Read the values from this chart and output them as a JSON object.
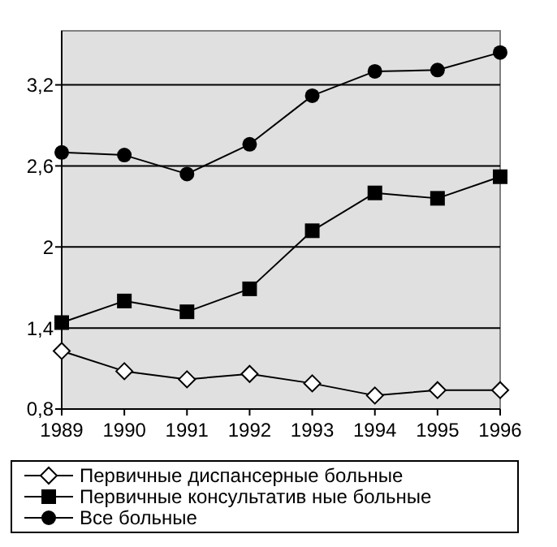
{
  "chart_data": {
    "type": "line",
    "categories": [
      "1989",
      "1990",
      "1991",
      "1992",
      "1993",
      "1994",
      "1995",
      "1996"
    ],
    "series": [
      {
        "name": "Первичные  диспансерные больные",
        "color": "#000000",
        "marker": "diamond",
        "values": [
          1.23,
          1.08,
          1.02,
          1.06,
          0.99,
          0.9,
          0.94,
          0.94
        ]
      },
      {
        "name": "Первичные  консультатив ные больные",
        "color": "#000000",
        "marker": "square",
        "values": [
          1.44,
          1.6,
          1.52,
          1.69,
          2.12,
          2.4,
          2.36,
          2.52
        ]
      },
      {
        "name": "Все больные",
        "color": "#000000",
        "marker": "circle",
        "values": [
          2.7,
          2.68,
          2.54,
          2.76,
          3.12,
          3.3,
          3.31,
          3.44
        ]
      }
    ],
    "ylim": [
      0.8,
      3.6
    ],
    "yticks": [
      {
        "value": 0.8,
        "label": "0,8"
      },
      {
        "value": 1.4,
        "label": "1,4"
      },
      {
        "value": 2,
        "label": "2"
      },
      {
        "value": 2.6,
        "label": "2,6"
      },
      {
        "value": 3.2,
        "label": "3,2"
      }
    ],
    "grid": "y",
    "legend": "bottom"
  }
}
